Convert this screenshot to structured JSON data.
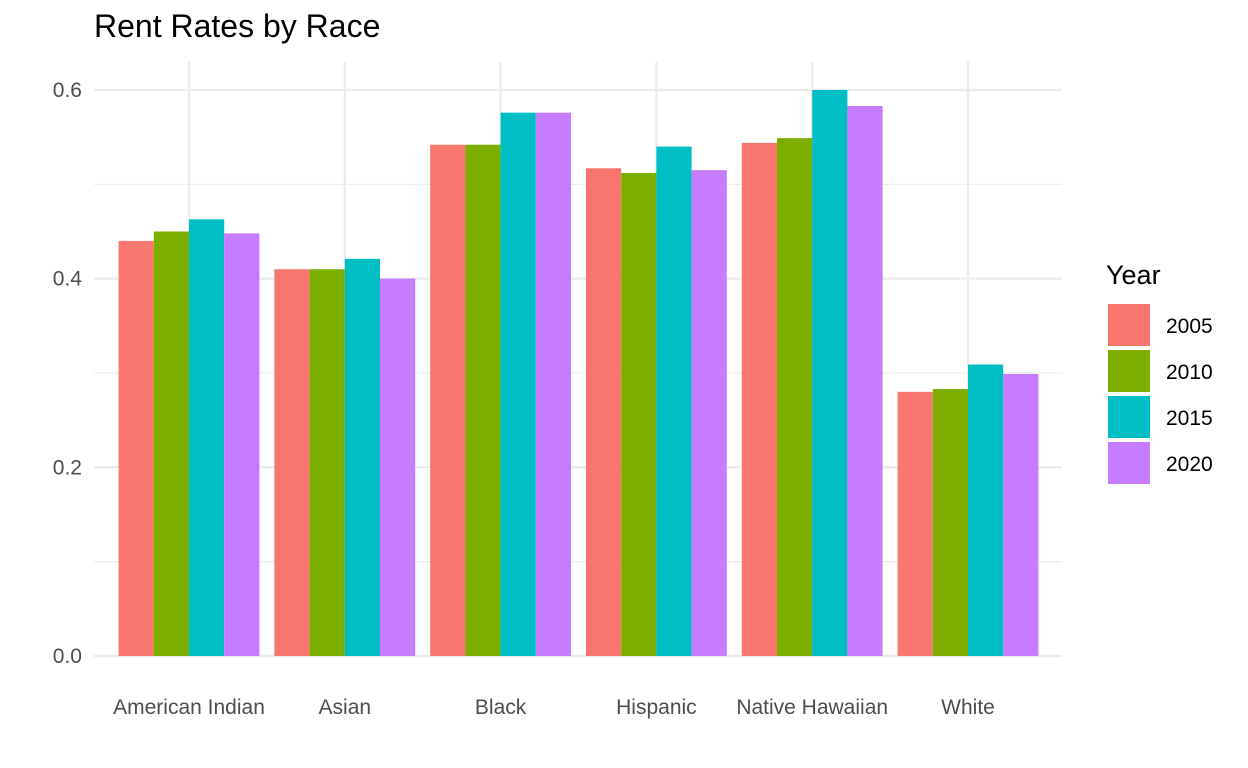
{
  "chart_data": {
    "type": "bar",
    "title": "Rent Rates by Race",
    "xlabel": "",
    "ylabel": "",
    "ylim": [
      0,
      0.6
    ],
    "y_ticks": [
      "0.0",
      "0.2",
      "0.4",
      "0.6"
    ],
    "y_tick_values": [
      0,
      0.2,
      0.4,
      0.6
    ],
    "categories": [
      "American Indian",
      "Asian",
      "Black",
      "Hispanic",
      "Native Hawaiian",
      "White"
    ],
    "legend_title": "Year",
    "legend_position": "right",
    "grid": true,
    "series": [
      {
        "name": "2005",
        "color": "#F8766D",
        "values": [
          0.44,
          0.41,
          0.542,
          0.517,
          0.544,
          0.28
        ]
      },
      {
        "name": "2010",
        "color": "#7CAE00",
        "values": [
          0.45,
          0.41,
          0.542,
          0.512,
          0.549,
          0.283
        ]
      },
      {
        "name": "2015",
        "color": "#00BFC4",
        "values": [
          0.463,
          0.421,
          0.576,
          0.54,
          0.6,
          0.309
        ]
      },
      {
        "name": "2020",
        "color": "#C77CFF",
        "values": [
          0.448,
          0.4,
          0.576,
          0.515,
          0.583,
          0.299
        ]
      }
    ]
  }
}
